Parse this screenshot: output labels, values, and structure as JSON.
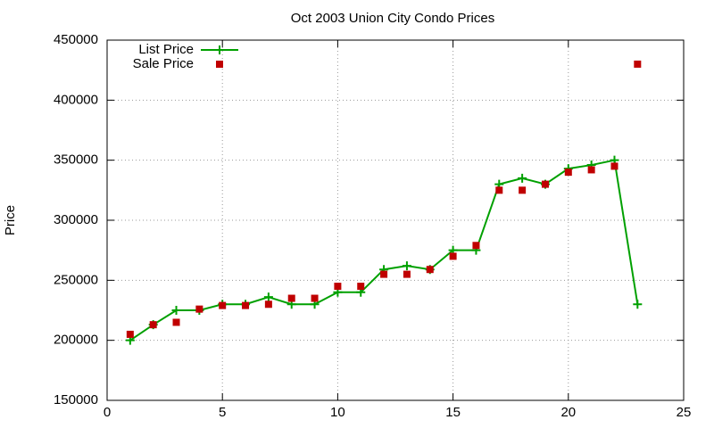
{
  "chart_data": {
    "type": "line",
    "title": "Oct 2003 Union City Condo Prices",
    "y_label": "Price",
    "x": [
      1,
      2,
      3,
      4,
      5,
      6,
      7,
      8,
      9,
      10,
      11,
      12,
      13,
      14,
      15,
      16,
      17,
      18,
      19,
      20,
      21,
      22,
      23
    ],
    "series": [
      {
        "name": "List Price",
        "color": "#00a000",
        "mode": "lines+markers",
        "marker": "plus",
        "values": [
          200000,
          213000,
          225000,
          225000,
          230000,
          230000,
          236000,
          230000,
          230000,
          240000,
          240000,
          259000,
          262000,
          259000,
          275000,
          275000,
          330000,
          335000,
          330000,
          343000,
          346000,
          350000,
          230000
        ]
      },
      {
        "name": "Sale Price",
        "color": "#c00000",
        "mode": "markers",
        "marker": "square",
        "values": [
          205000,
          213000,
          215000,
          226000,
          229000,
          229000,
          230000,
          235000,
          235000,
          245000,
          245000,
          255000,
          255000,
          259000,
          270000,
          279000,
          325000,
          325000,
          330000,
          340000,
          342000,
          345000,
          430000
        ]
      }
    ],
    "xlim": [
      0,
      25
    ],
    "xticks": [
      0,
      5,
      10,
      15,
      20,
      25
    ],
    "ylim": [
      150000,
      450000
    ],
    "yticks": [
      150000,
      200000,
      250000,
      300000,
      350000,
      400000,
      450000
    ],
    "grid": true,
    "legend": "top-left"
  }
}
